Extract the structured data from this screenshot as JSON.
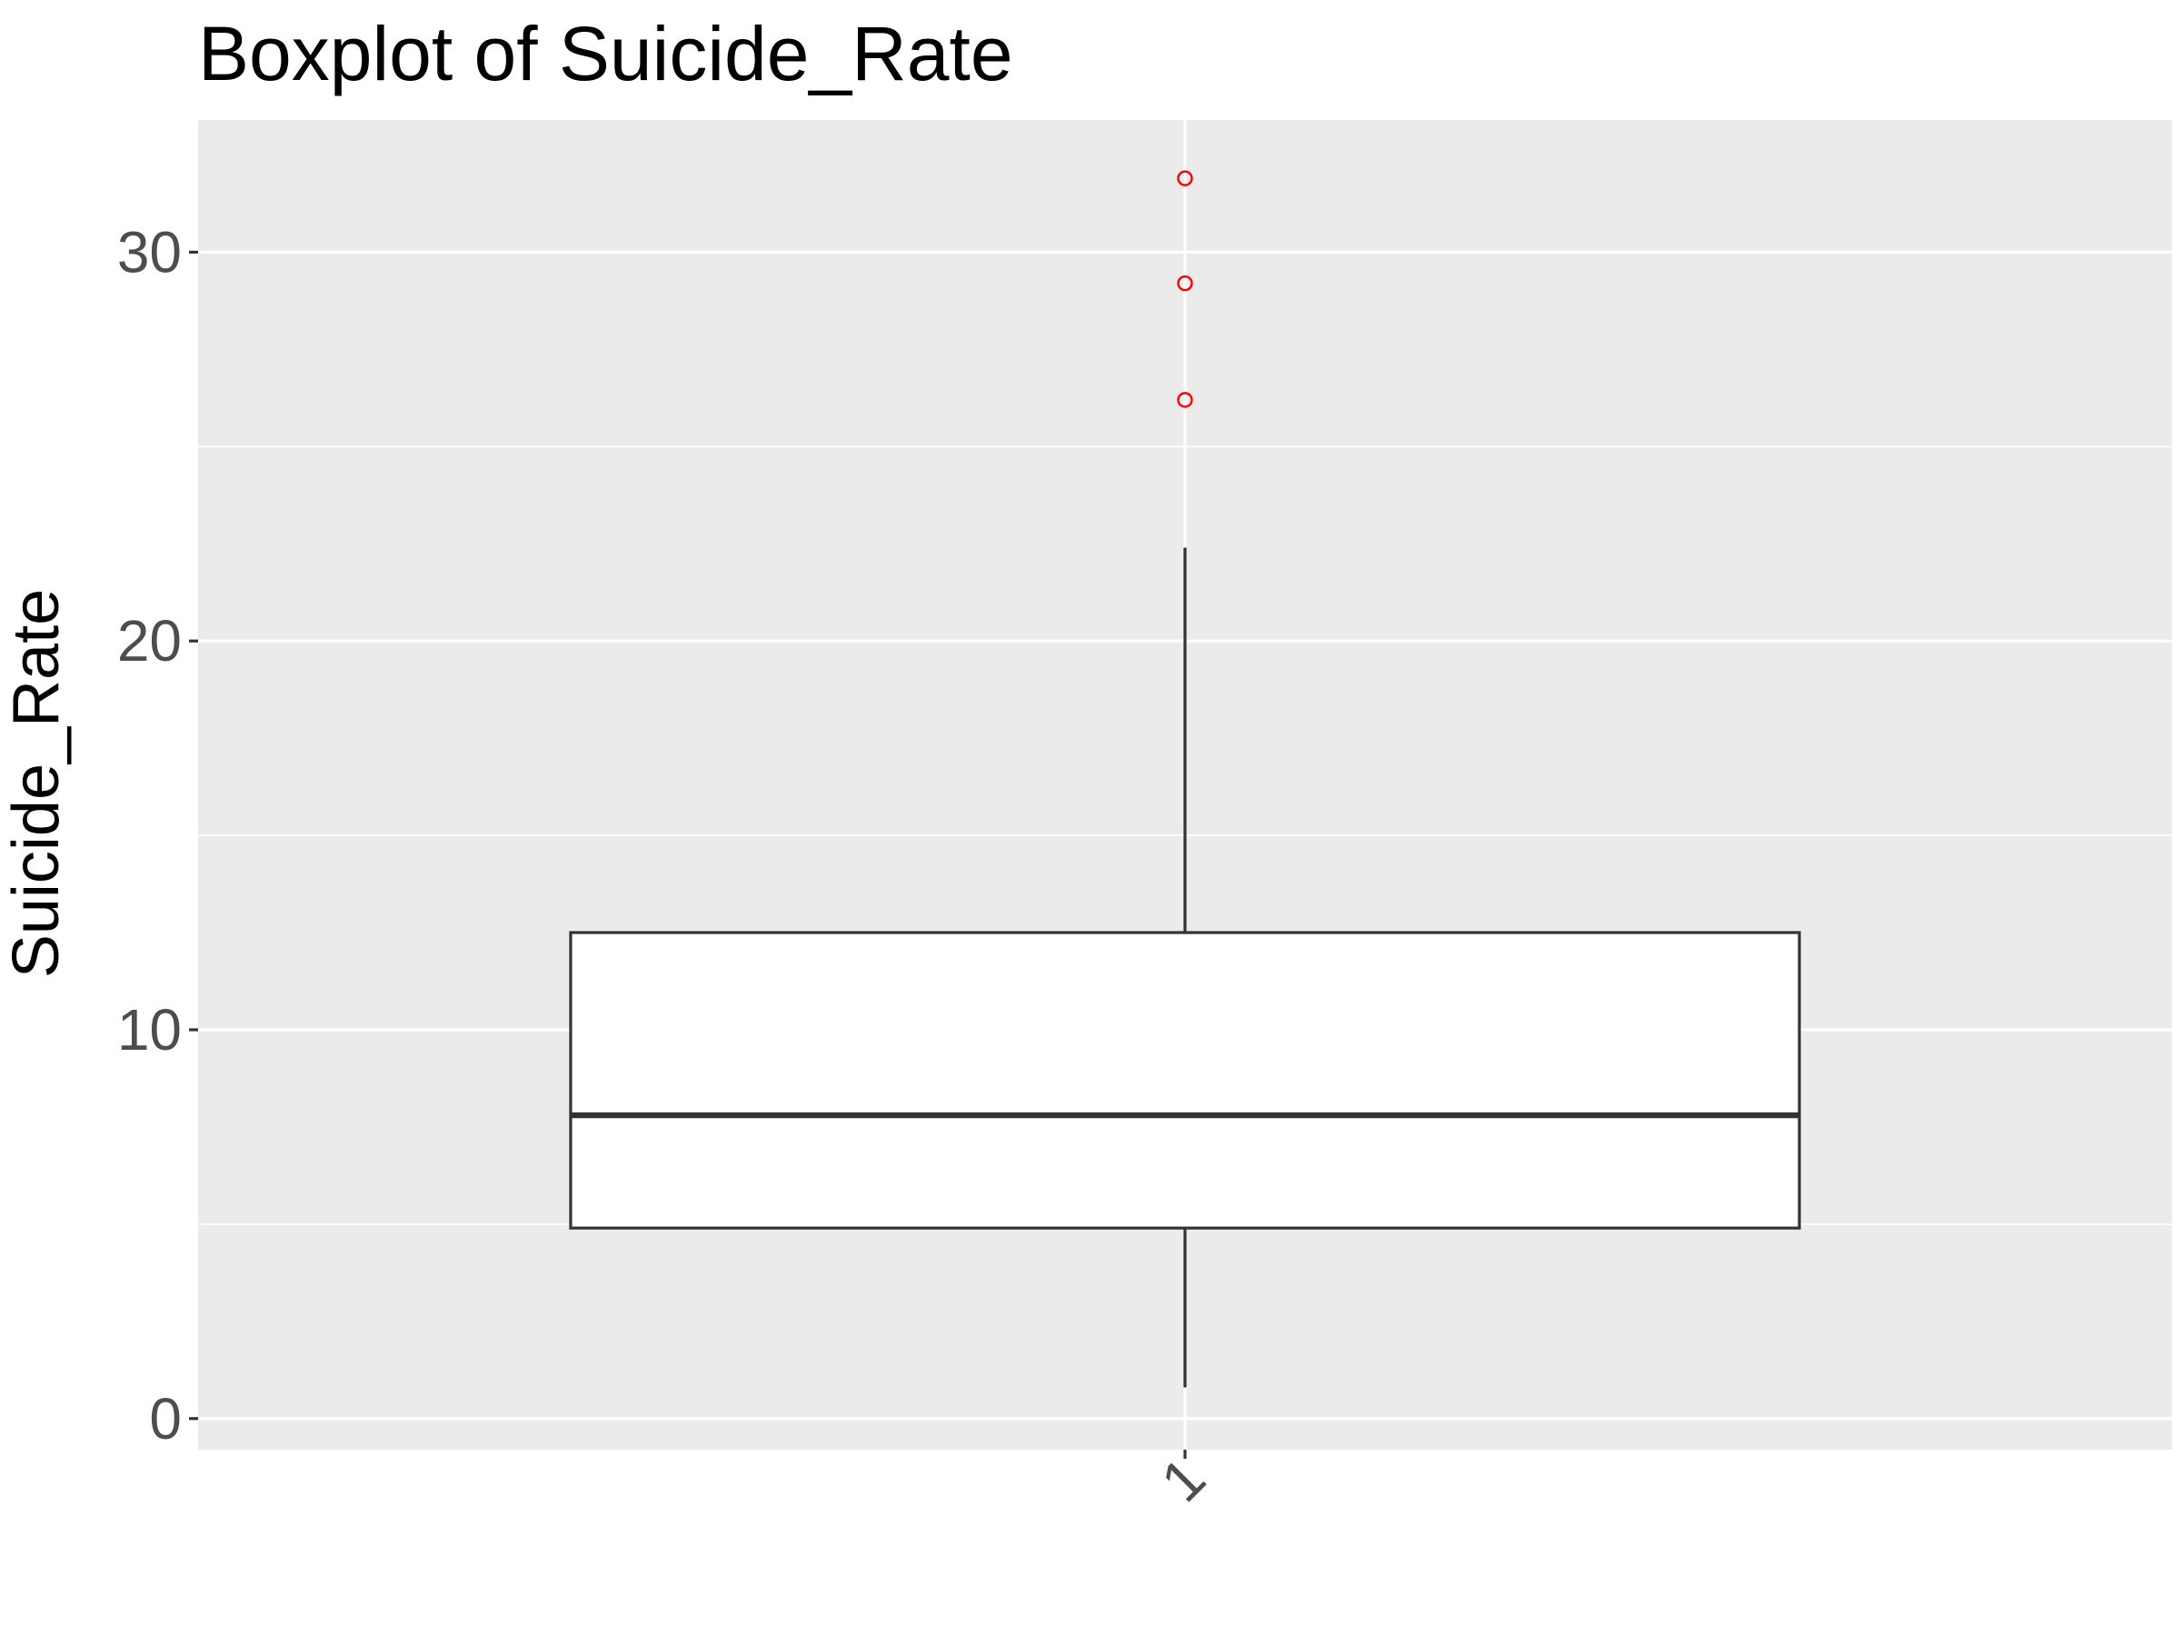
{
  "chart_data": {
    "type": "boxplot",
    "title": "Boxplot of Suicide_Rate",
    "xlabel": "",
    "ylabel": "Suicide_Rate",
    "categories": [
      "1"
    ],
    "y_ticks": [
      0,
      10,
      20,
      30
    ],
    "ylim": [
      -0.8,
      33.4
    ],
    "grid": true,
    "boxes": [
      {
        "category": "1",
        "whisker_low": 0.8,
        "q1": 4.9,
        "median": 7.8,
        "q3": 12.5,
        "whisker_high": 22.4,
        "outliers": [
          26.2,
          29.2,
          31.9
        ]
      }
    ],
    "colors": {
      "panel_background": "#ebebeb",
      "grid": "#ffffff",
      "box_fill": "#ffffff",
      "box_line": "#333333",
      "outlier": "#ff0000"
    }
  }
}
